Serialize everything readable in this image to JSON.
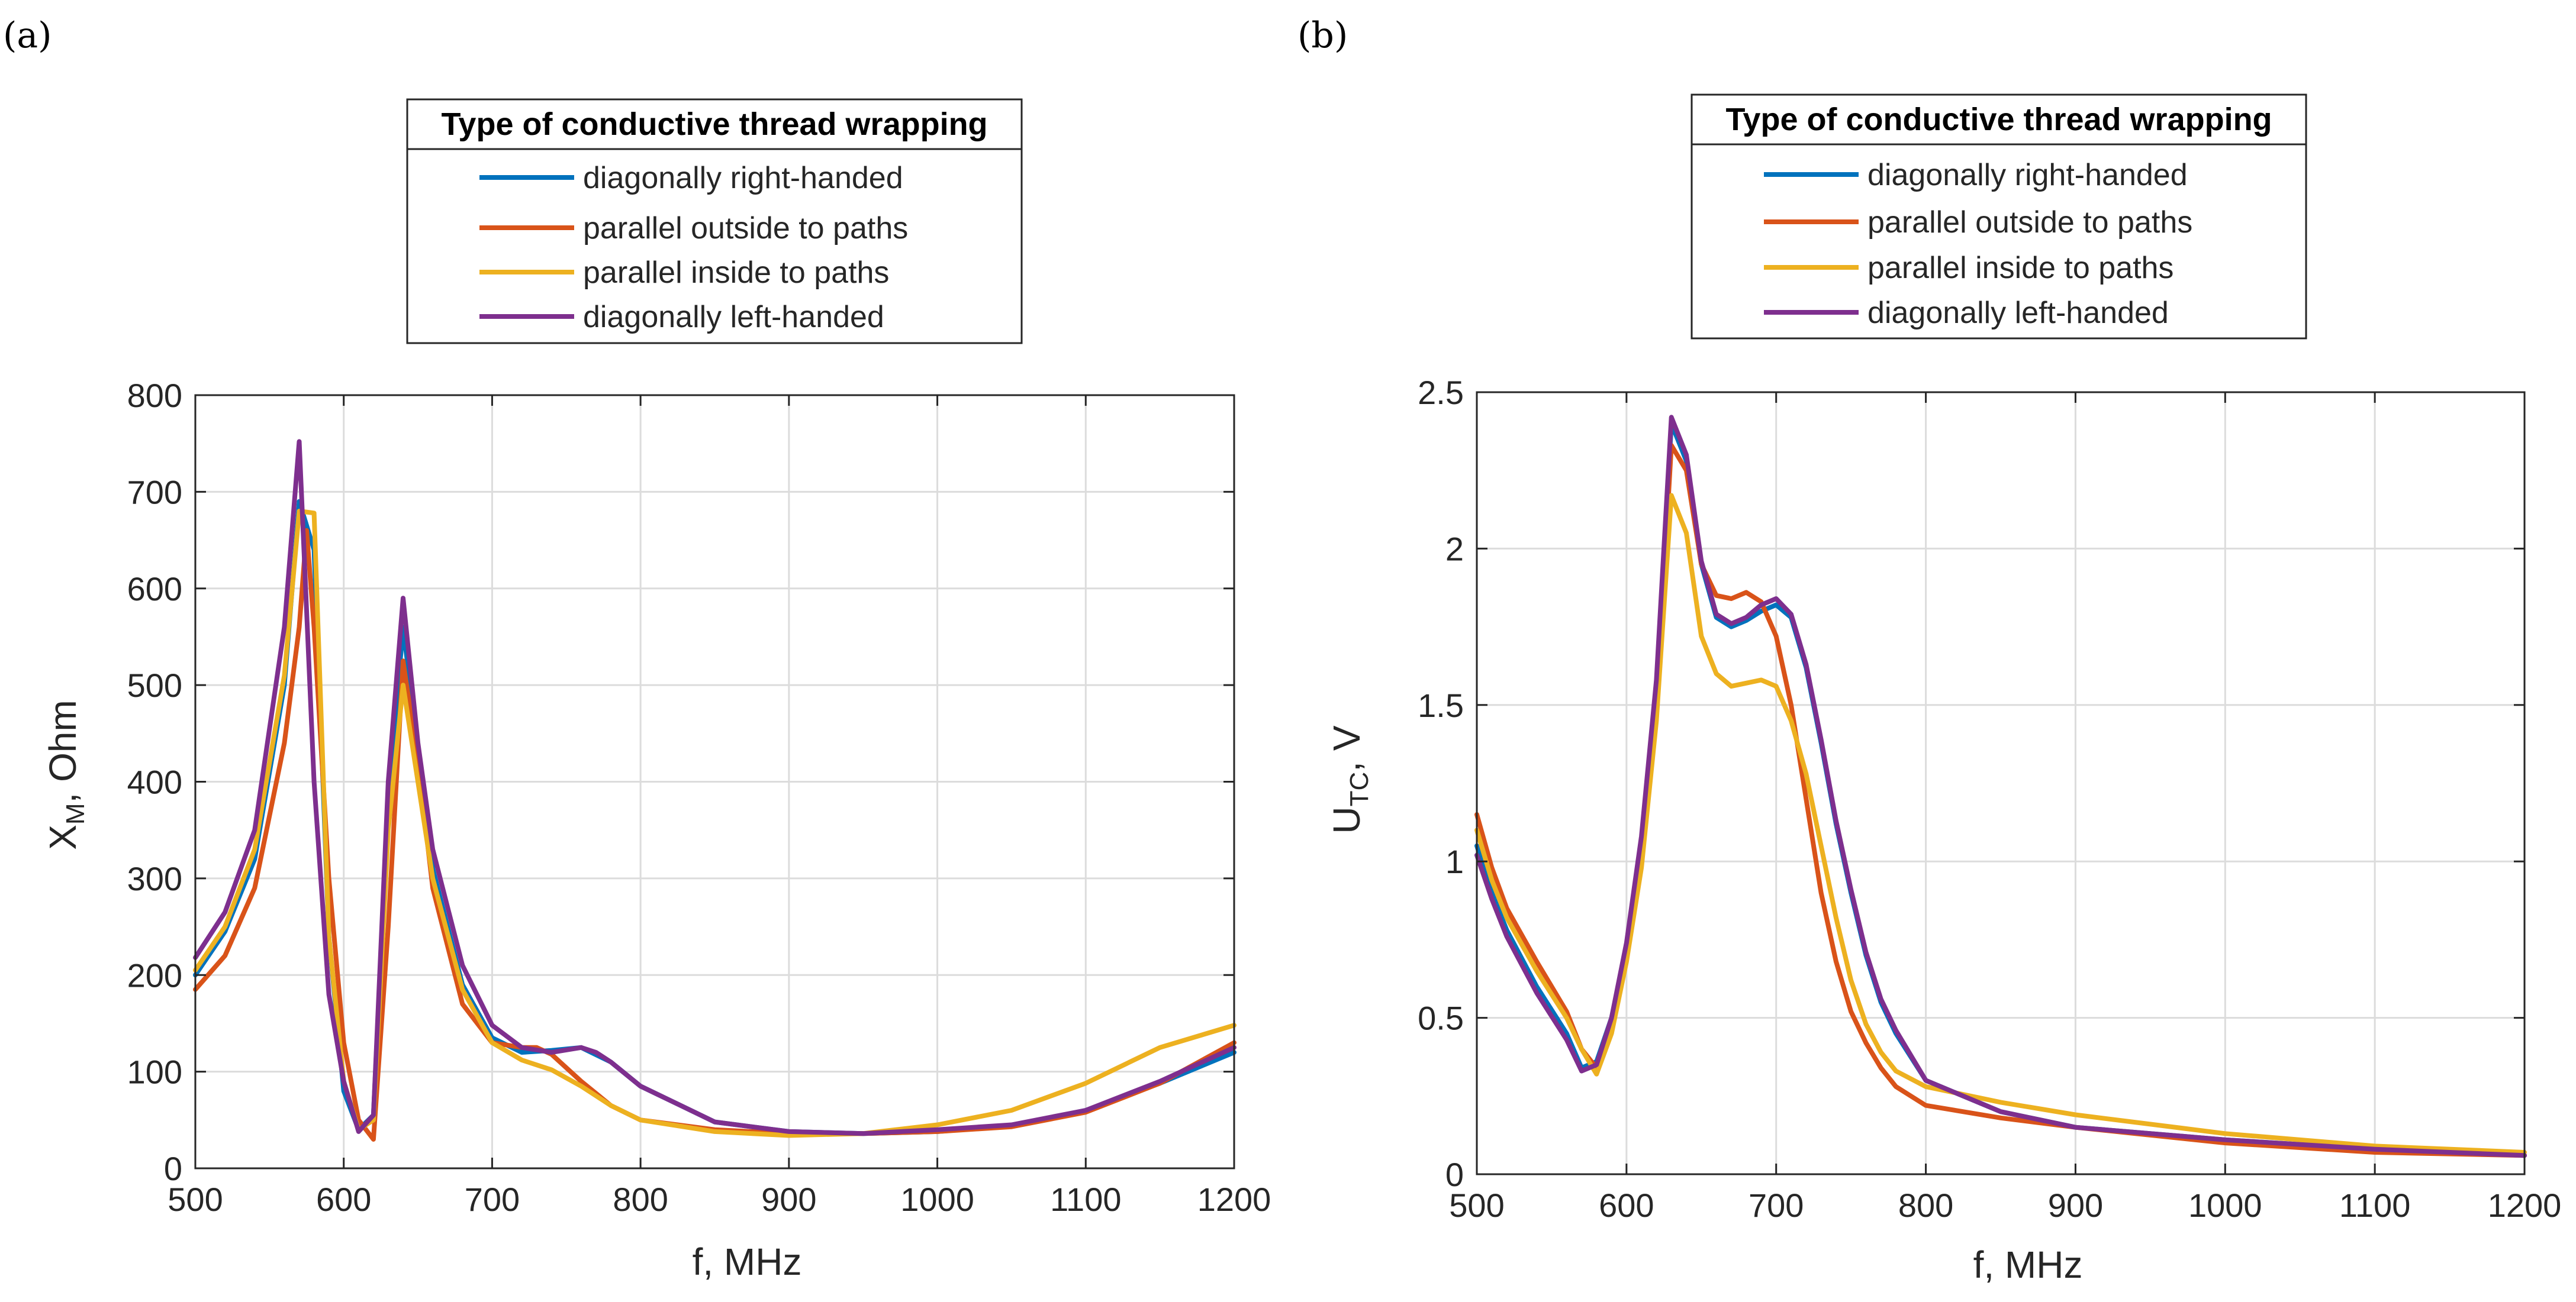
{
  "panels": [
    {
      "label": "(a)",
      "legend": {
        "title": "Type of conductive thread wrapping",
        "entries": [
          "diagonally right-handed",
          "parallel outside to paths",
          "parallel inside to paths",
          "diagonally left-handed"
        ]
      }
    },
    {
      "label": "(b)",
      "legend": {
        "title": "Type of conductive thread wrapping",
        "entries": [
          "diagonally right-handed",
          "parallel outside to paths",
          "parallel inside to paths",
          "diagonally left-handed"
        ]
      }
    }
  ],
  "series_colors": [
    "#0072BD",
    "#D95319",
    "#EDB120",
    "#7E2F8E"
  ],
  "chart_data": [
    {
      "type": "line",
      "xlabel": "f, MHz",
      "ylabel_main": "X",
      "ylabel_sub": "M",
      "ylabel_rest": ", Ohm",
      "xlim": [
        500,
        1200
      ],
      "ylim": [
        0,
        800
      ],
      "xticks": [
        500,
        600,
        700,
        800,
        900,
        1000,
        1100,
        1200
      ],
      "yticks": [
        0,
        100,
        200,
        300,
        400,
        500,
        600,
        700,
        800
      ],
      "grid": true,
      "legend_position": "top",
      "series": [
        {
          "name": "diagonally right-handed",
          "x": [
            500,
            520,
            540,
            560,
            570,
            580,
            590,
            600,
            610,
            620,
            630,
            640,
            660,
            680,
            700,
            720,
            740,
            760,
            780,
            800,
            850,
            900,
            950,
            1000,
            1050,
            1100,
            1150,
            1200
          ],
          "y": [
            200,
            245,
            320,
            500,
            690,
            640,
            240,
            80,
            40,
            55,
            380,
            560,
            310,
            190,
            135,
            120,
            122,
            125,
            110,
            85,
            48,
            38,
            36,
            38,
            44,
            60,
            88,
            120
          ]
        },
        {
          "name": "parallel outside to paths",
          "x": [
            500,
            520,
            540,
            560,
            570,
            575,
            580,
            590,
            600,
            610,
            620,
            630,
            640,
            650,
            660,
            680,
            700,
            720,
            730,
            740,
            760,
            780,
            800,
            850,
            900,
            950,
            1000,
            1050,
            1100,
            1150,
            1200
          ],
          "y": [
            185,
            220,
            290,
            440,
            560,
            660,
            560,
            300,
            130,
            50,
            30,
            250,
            525,
            420,
            290,
            170,
            130,
            125,
            125,
            118,
            90,
            65,
            50,
            40,
            36,
            36,
            38,
            43,
            58,
            88,
            130
          ]
        },
        {
          "name": "parallel inside to paths",
          "x": [
            500,
            520,
            540,
            560,
            570,
            580,
            590,
            600,
            610,
            620,
            630,
            640,
            660,
            680,
            700,
            720,
            740,
            760,
            780,
            800,
            850,
            900,
            950,
            1000,
            1050,
            1100,
            1150,
            1200
          ],
          "y": [
            205,
            250,
            330,
            510,
            680,
            678,
            240,
            90,
            40,
            50,
            350,
            500,
            300,
            185,
            130,
            112,
            102,
            85,
            65,
            50,
            38,
            34,
            36,
            45,
            60,
            88,
            125,
            148
          ]
        },
        {
          "name": "diagonally left-handed",
          "x": [
            500,
            520,
            540,
            560,
            570,
            580,
            590,
            600,
            610,
            620,
            630,
            640,
            650,
            660,
            680,
            700,
            720,
            740,
            760,
            770,
            780,
            800,
            850,
            900,
            950,
            1000,
            1050,
            1100,
            1150,
            1200
          ],
          "y": [
            218,
            265,
            350,
            560,
            752,
            400,
            180,
            90,
            38,
            55,
            400,
            590,
            440,
            330,
            210,
            148,
            125,
            120,
            125,
            120,
            110,
            85,
            48,
            38,
            36,
            40,
            45,
            60,
            90,
            125
          ]
        }
      ]
    },
    {
      "type": "line",
      "xlabel": "f, MHz",
      "ylabel_main": "U",
      "ylabel_sub": "TC",
      "ylabel_rest": ", V",
      "xlim": [
        500,
        1200
      ],
      "ylim": [
        0,
        2.5
      ],
      "xticks": [
        500,
        600,
        700,
        800,
        900,
        1000,
        1100,
        1200
      ],
      "yticks": [
        0,
        0.5,
        1,
        1.5,
        2,
        2.5
      ],
      "grid": true,
      "legend_position": "top",
      "series": [
        {
          "name": "diagonally right-handed",
          "x": [
            500,
            510,
            520,
            540,
            560,
            570,
            580,
            590,
            600,
            610,
            620,
            630,
            640,
            650,
            660,
            670,
            680,
            690,
            700,
            710,
            720,
            730,
            740,
            750,
            760,
            770,
            780,
            800,
            850,
            900,
            1000,
            1100,
            1200
          ],
          "y": [
            1.05,
            0.9,
            0.78,
            0.6,
            0.45,
            0.34,
            0.36,
            0.5,
            0.72,
            1.05,
            1.55,
            2.4,
            2.28,
            1.95,
            1.78,
            1.75,
            1.77,
            1.8,
            1.82,
            1.78,
            1.62,
            1.38,
            1.12,
            0.9,
            0.7,
            0.55,
            0.45,
            0.3,
            0.2,
            0.15,
            0.11,
            0.08,
            0.06
          ]
        },
        {
          "name": "parallel outside to paths",
          "x": [
            500,
            510,
            520,
            540,
            560,
            570,
            580,
            590,
            600,
            610,
            620,
            630,
            640,
            650,
            660,
            670,
            680,
            690,
            700,
            710,
            720,
            730,
            740,
            750,
            760,
            770,
            780,
            800,
            850,
            900,
            1000,
            1100,
            1200
          ],
          "y": [
            1.15,
            0.98,
            0.85,
            0.68,
            0.52,
            0.4,
            0.34,
            0.48,
            0.7,
            1.02,
            1.5,
            2.33,
            2.25,
            1.95,
            1.85,
            1.84,
            1.86,
            1.83,
            1.72,
            1.5,
            1.2,
            0.9,
            0.68,
            0.52,
            0.42,
            0.34,
            0.28,
            0.22,
            0.18,
            0.15,
            0.1,
            0.07,
            0.06
          ]
        },
        {
          "name": "parallel inside to paths",
          "x": [
            500,
            510,
            520,
            540,
            560,
            570,
            580,
            590,
            600,
            610,
            620,
            630,
            640,
            650,
            660,
            670,
            680,
            690,
            700,
            710,
            720,
            730,
            740,
            750,
            760,
            770,
            780,
            800,
            850,
            900,
            1000,
            1100,
            1200
          ],
          "y": [
            1.1,
            0.94,
            0.82,
            0.65,
            0.5,
            0.4,
            0.32,
            0.45,
            0.68,
            0.98,
            1.45,
            2.17,
            2.05,
            1.72,
            1.6,
            1.56,
            1.57,
            1.58,
            1.56,
            1.45,
            1.28,
            1.05,
            0.82,
            0.62,
            0.48,
            0.39,
            0.33,
            0.28,
            0.23,
            0.19,
            0.13,
            0.09,
            0.07
          ]
        },
        {
          "name": "diagonally left-handed",
          "x": [
            500,
            510,
            520,
            540,
            560,
            570,
            580,
            590,
            600,
            610,
            620,
            630,
            640,
            650,
            660,
            670,
            680,
            690,
            700,
            710,
            720,
            730,
            740,
            750,
            760,
            770,
            780,
            800,
            850,
            900,
            1000,
            1100,
            1200
          ],
          "y": [
            1.02,
            0.88,
            0.76,
            0.58,
            0.43,
            0.33,
            0.35,
            0.5,
            0.74,
            1.08,
            1.58,
            2.42,
            2.3,
            1.96,
            1.79,
            1.76,
            1.78,
            1.82,
            1.84,
            1.79,
            1.63,
            1.39,
            1.13,
            0.91,
            0.71,
            0.56,
            0.46,
            0.3,
            0.2,
            0.15,
            0.11,
            0.08,
            0.06
          ]
        }
      ]
    }
  ]
}
